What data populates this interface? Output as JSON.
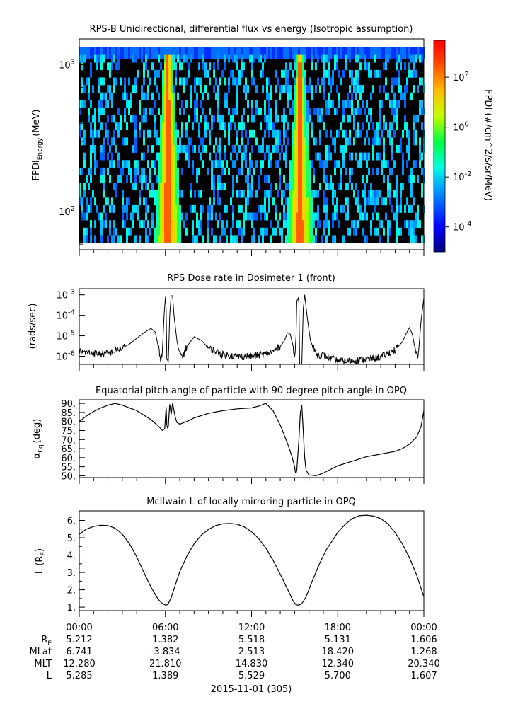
{
  "chart_data": [
    {
      "type": "heatmap",
      "title": "RPS-B  Unidirectional, differential flux vs energy (Isotropic assumption)",
      "ylabel_main": "FPDI",
      "ylabel_sub": "Energy",
      "ylabel_unit": "(MeV)",
      "y_scale": "log",
      "ylim": [
        55,
        1500
      ],
      "yticks": [
        {
          "value": 100,
          "base": "10",
          "exp": "2"
        },
        {
          "value": 1000,
          "base": "10",
          "exp": "3"
        }
      ],
      "colorbar": {
        "label": "FPDI (#/cm^2/s/sr/MeV)",
        "scale": "log",
        "range": [
          1e-05,
          3000
        ],
        "ticks": [
          {
            "value": 0.0001,
            "base": "10",
            "exp": "-4"
          },
          {
            "value": 0.01,
            "base": "10",
            "exp": "-2"
          },
          {
            "value": 1,
            "base": "10",
            "exp": "0"
          },
          {
            "value": 100,
            "base": "10",
            "exp": "2"
          }
        ]
      },
      "belt_crossings_hours": [
        6.1,
        15.3
      ],
      "background_level": "low / no counts between crossings"
    },
    {
      "type": "line",
      "title": "RPS  Dose rate in Dosimeter 1 (front)",
      "ylabel": "(rads/sec)",
      "y_scale": "log",
      "ylim": [
        4e-07,
        0.002
      ],
      "yticks": [
        {
          "value": 1e-06,
          "base": "10",
          "exp": "-6"
        },
        {
          "value": 1e-05,
          "base": "10",
          "exp": "-5"
        },
        {
          "value": 0.0001,
          "base": "10",
          "exp": "-4"
        },
        {
          "value": 0.001,
          "base": "10",
          "exp": "-3"
        }
      ],
      "x_hours": [
        0,
        0.5,
        1,
        1.5,
        2,
        2.5,
        3,
        3.5,
        4,
        4.5,
        5,
        5.3,
        5.5,
        5.7,
        5.8,
        5.9,
        6.0,
        6.05,
        6.1,
        6.2,
        6.3,
        6.4,
        6.5,
        6.6,
        6.8,
        7.0,
        7.2,
        7.5,
        8,
        8.5,
        9,
        10,
        11,
        12,
        13,
        13.5,
        14,
        14.3,
        14.5,
        14.7,
        14.9,
        15.0,
        15.1,
        15.15,
        15.25,
        15.3,
        15.35,
        15.5,
        15.6,
        15.7,
        15.9,
        16.1,
        16.3,
        16.6,
        17,
        17.5,
        18,
        19,
        20,
        21,
        21.5,
        22,
        22.5,
        22.8,
        23,
        23.2,
        23.4,
        23.6,
        23.8,
        24
      ],
      "y_rads_per_sec": [
        1.7e-06,
        1.5e-06,
        1.4e-06,
        1.3e-06,
        1.4e-06,
        1.8e-06,
        2.5e-06,
        4e-06,
        7.5e-06,
        1.4e-05,
        2.3e-05,
        1.5e-05,
        3e-06,
        6e-07,
        2e-06,
        8e-05,
        0.0008,
        0.0002,
        8e-07,
        4e-07,
        0.0001,
        0.0009,
        0.0009,
        0.0001,
        6e-06,
        1.2e-06,
        1e-06,
        3e-06,
        9e-06,
        6e-06,
        2.5e-06,
        1.2e-06,
        1e-06,
        1e-06,
        1.3e-06,
        1.7e-06,
        3e-06,
        6e-06,
        1.4e-05,
        1.2e-05,
        3e-06,
        8e-07,
        1e-05,
        0.0005,
        0.0007,
        0.0004,
        4e-07,
        4e-07,
        0.0002,
        0.001,
        6e-05,
        6e-06,
        2.5e-06,
        1.2e-06,
        1.1e-06,
        8e-07,
        6e-07,
        6e-07,
        7e-07,
        9e-07,
        1.4e-06,
        2e-06,
        5e-06,
        1.4e-05,
        2.5e-05,
        1.2e-05,
        2e-06,
        8e-07,
        5e-05,
        0.0007
      ]
    },
    {
      "type": "line",
      "title": "Equatorial pitch angle of particle with 90 degree pitch angle in OPQ",
      "ylabel_main": "α",
      "ylabel_sub": "Eq",
      "ylabel_unit": "(deg)",
      "ylim": [
        49,
        92
      ],
      "yticks": [
        "50.",
        "55.",
        "60.",
        "65.",
        "70.",
        "75.",
        "80.",
        "85.",
        "90."
      ],
      "x_hours": [
        0,
        0.5,
        1,
        1.5,
        2,
        2.5,
        3,
        4,
        5,
        5.5,
        5.8,
        5.95,
        6.0,
        6.05,
        6.1,
        6.15,
        6.2,
        6.3,
        6.4,
        6.5,
        6.6,
        6.7,
        6.8,
        7,
        7.5,
        8,
        9,
        10,
        11,
        12,
        12.5,
        13,
        13.5,
        14,
        14.5,
        14.8,
        15.0,
        15.05,
        15.1,
        15.15,
        15.3,
        15.4,
        15.5,
        15.6,
        15.7,
        15.8,
        16.0,
        16.5,
        17,
        17.5,
        18,
        19,
        20,
        21,
        22,
        22.5,
        23,
        23.5,
        23.8,
        24
      ],
      "y_deg": [
        80,
        83,
        85.5,
        87.5,
        89,
        90,
        89,
        86,
        81,
        77.5,
        75,
        76,
        82,
        88,
        78,
        76.5,
        77,
        89.5,
        84,
        90,
        86,
        82,
        79.5,
        78.5,
        80,
        82,
        84.5,
        86,
        87,
        87.5,
        88.5,
        90,
        86,
        78,
        68,
        61,
        55,
        52,
        51.5,
        53,
        70,
        85,
        89,
        75,
        60,
        53,
        50.5,
        50,
        51.5,
        53.5,
        55.5,
        58,
        60.5,
        62,
        63.5,
        65,
        67.5,
        71.5,
        77,
        86
      ]
    },
    {
      "type": "line",
      "title": "McIlwain L of locally mirroring particle in OPQ",
      "ylabel_main": "L (R",
      "ylabel_sub": "E",
      "ylabel_unit": ")",
      "ylim": [
        0.8,
        6.55
      ],
      "yticks": [
        "1.",
        "2.",
        "3.",
        "4.",
        "5.",
        "6."
      ],
      "x_hours": [
        0,
        0.5,
        1,
        1.5,
        2,
        2.5,
        3,
        3.5,
        4,
        4.5,
        5,
        5.5,
        5.8,
        6.0,
        6.1,
        6.2,
        6.4,
        6.7,
        7,
        7.5,
        8,
        8.5,
        9,
        9.5,
        10,
        10.5,
        11,
        11.5,
        12,
        12.5,
        13,
        13.5,
        14,
        14.5,
        14.9,
        15.1,
        15.3,
        15.5,
        15.8,
        16.2,
        16.7,
        17.2,
        18,
        18.5,
        19,
        19.5,
        20,
        20.5,
        21,
        21.5,
        22,
        22.5,
        23,
        23.5,
        24
      ],
      "y_l": [
        5.2,
        5.5,
        5.65,
        5.72,
        5.7,
        5.55,
        5.2,
        4.65,
        3.9,
        3.0,
        2.15,
        1.45,
        1.2,
        1.12,
        1.13,
        1.2,
        1.55,
        2.3,
        3.05,
        3.95,
        4.65,
        5.15,
        5.48,
        5.7,
        5.8,
        5.82,
        5.78,
        5.62,
        5.35,
        4.95,
        4.4,
        3.7,
        2.9,
        2.05,
        1.35,
        1.13,
        1.12,
        1.2,
        1.6,
        2.45,
        3.45,
        4.3,
        5.3,
        5.75,
        6.1,
        6.27,
        6.3,
        6.25,
        6.1,
        5.8,
        5.3,
        4.65,
        3.85,
        2.85,
        1.6
      ]
    }
  ],
  "x_axis": {
    "tick_labels": [
      "00:00",
      "06:00",
      "12:00",
      "18:00",
      "00:00"
    ],
    "date_label": "2015-11-01 (305)"
  },
  "ephemeris": {
    "rows": [
      {
        "label": "R",
        "sub": "E",
        "values": [
          "5.212",
          "1.382",
          "5.518",
          "5.131",
          "1.606"
        ]
      },
      {
        "label": "MLat",
        "sub": "",
        "values": [
          "6.741",
          "-3.834",
          "2.513",
          "18.420",
          "1.268"
        ]
      },
      {
        "label": "MLT",
        "sub": "",
        "values": [
          "12.280",
          "21.810",
          "14.830",
          "12.340",
          "20.340"
        ]
      },
      {
        "label": "L",
        "sub": "",
        "values": [
          "5.285",
          "1.389",
          "5.529",
          "5.700",
          "1.607"
        ]
      }
    ]
  }
}
